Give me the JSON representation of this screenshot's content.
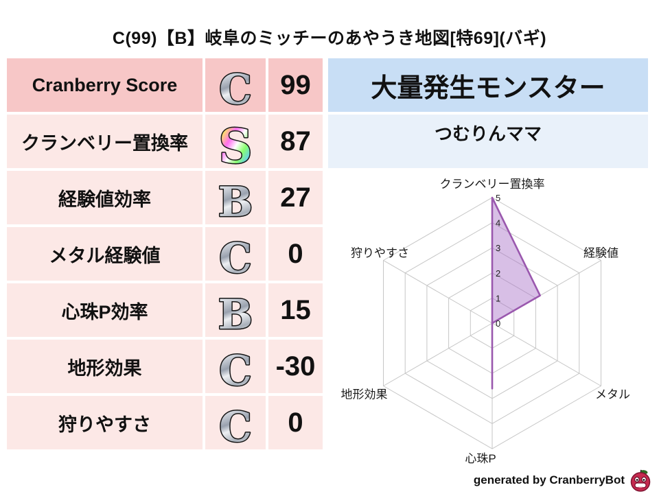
{
  "title": "C(99)【B】岐阜のミッチーのあやうき地図[特69](バギ)",
  "stats_table": {
    "rows": [
      {
        "label": "Cranberry Score",
        "grade": "C",
        "value": "99"
      },
      {
        "label": "クランベリー置換率",
        "grade": "S",
        "value": "87"
      },
      {
        "label": "経験値効率",
        "grade": "B",
        "value": "27"
      },
      {
        "label": "メタル経験値",
        "grade": "C",
        "value": "0"
      },
      {
        "label": "心珠P効率",
        "grade": "B",
        "value": "15"
      },
      {
        "label": "地形効果",
        "grade": "C",
        "value": "-30"
      },
      {
        "label": "狩りやすさ",
        "grade": "C",
        "value": "0"
      }
    ]
  },
  "monster_panel": {
    "header": "大量発生モンスター",
    "name": "つむりんママ"
  },
  "chart_data": {
    "type": "radar",
    "categories": [
      "クランベリー置換率",
      "経験値",
      "メタル",
      "心珠P",
      "地形効果",
      "狩りやすさ"
    ],
    "values": [
      5,
      2.2,
      0,
      2.6,
      0,
      0
    ],
    "ticks": [
      0,
      1,
      2,
      3,
      4,
      5
    ],
    "rmax": 5,
    "grid": true,
    "legend": "none",
    "fill_color": "rgba(168,112,200,0.45)",
    "stroke_color": "#9a58ae",
    "grid_color": "#c6c6c6",
    "tick_color": "#222222",
    "label_color": "#1a1a1a"
  },
  "footer": {
    "credit": "generated by CranberryBot",
    "icon": "cranberry-bot-icon"
  },
  "colors": {
    "text": "#111111",
    "row_dark": "#f7c7c7",
    "row_light": "#fce8e6",
    "header_blue": "#c8def5",
    "subheader_blue": "#e9f1fa",
    "berry_red": "#c62a4f",
    "berry_outline": "#7e1432",
    "leaf_green": "#2f6b25"
  }
}
